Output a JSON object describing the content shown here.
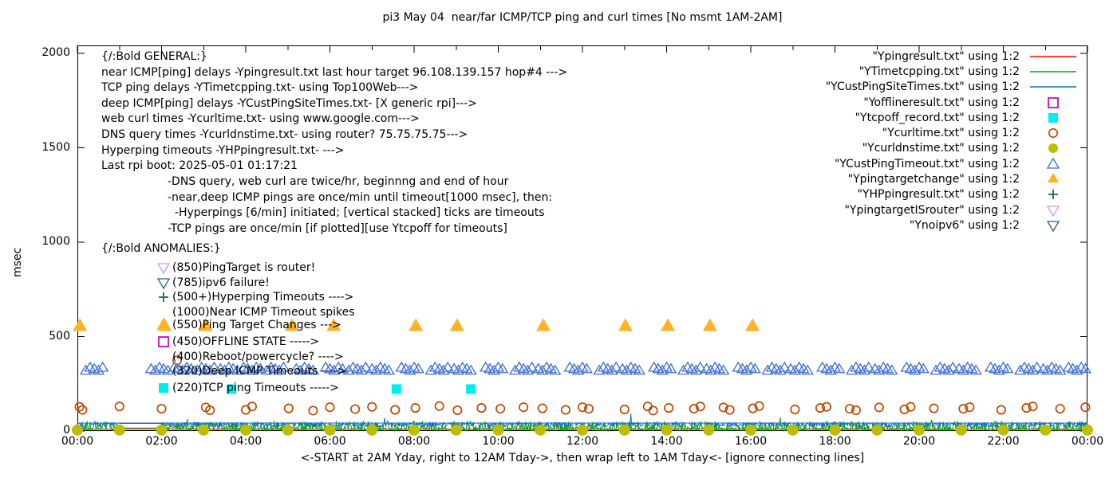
{
  "title": "pi3 May 04  near/far ICMP/TCP ping and curl times [No msmt 1AM-2AM]",
  "axes": {
    "y_label": "msec",
    "y_ticks": [
      0,
      500,
      1000,
      1500,
      2000
    ],
    "x_tick_labels": [
      "00:00",
      "02:00",
      "04:00",
      "06:00",
      "08:00",
      "10:00",
      "12:00",
      "14:00",
      "16:00",
      "18:00",
      "20:00",
      "22:00",
      "00:00"
    ],
    "x_caption": "<-START at 2AM Yday, right to 12AM Tday->, then wrap left to 1AM Tday<- [ignore connecting lines]"
  },
  "legend": {
    "items": [
      {
        "label": "\"Ypingresult.txt\" using 1:2",
        "marker": "line",
        "color": "#ff0000"
      },
      {
        "label": "\"YTimetcpping.txt\" using 1:2",
        "marker": "line",
        "color": "#00a400"
      },
      {
        "label": "\"YCustPingSiteTimes.txt\" using 1:2",
        "marker": "line",
        "color": "#0b69d4"
      },
      {
        "label": "\"Yofflineresult.txt\" using 1:2",
        "marker": "square-open",
        "color": "#bf00bf"
      },
      {
        "label": "\"Ytcpoff_record.txt\" using 1:2",
        "marker": "square-filled",
        "color": "#00eeee"
      },
      {
        "label": "\"Ycurltime.txt\" using 1:2",
        "marker": "circle-open",
        "color": "#c04800"
      },
      {
        "label": "\"Ycurldnstime.txt\" using 1:2",
        "marker": "circle-filled",
        "color": "#bdbd00"
      },
      {
        "label": "\"YCustPingTimeout.txt\" using 1:2",
        "marker": "triangle-up-open",
        "color": "#3c6fd1"
      },
      {
        "label": "\"Ypingtargetchange\" using 1:2",
        "marker": "triangle-up-filled",
        "color": "#ffb226"
      },
      {
        "label": "\"YHPpingresult.txt\" using 1:2",
        "marker": "plus",
        "color": "#1a6b52"
      },
      {
        "label": "\"YpingtargetISrouter\" using 1:2",
        "marker": "triangle-down-open",
        "color": "#cc99ee"
      },
      {
        "label": "\"Ynoipv6\" using 1:2",
        "marker": "triangle-down-open",
        "color": "#33617d"
      }
    ]
  },
  "general": {
    "heading": "{/:Bold GENERAL:}",
    "lines": [
      "near ICMP[ping] delays -Ypingresult.txt last hour target 96.108.139.157 hop#4 --->",
      "TCP ping delays -YTimetcpping.txt- using Top100Web--->",
      "deep ICMP[ping] delays -YCustPingSiteTimes.txt- [X generic rpi]--->",
      "web curl times -Ycurltime.txt- using www.google.com--->",
      "DNS query times -Ycurldnstime.txt- using router? 75.75.75.75--->",
      "Hyperping timeouts -YHPpingresult.txt- --->",
      "Last rpi boot: 2025-05-01 01:17:21"
    ],
    "notes": [
      "-DNS query, web curl are twice/hr, beginnng and end of hour",
      "-near,deep ICMP pings are once/min until timeout[1000 msec], then:",
      "  -Hyperpings [6/min] initiated; [vertical stacked] ticks are timeouts",
      "-TCP pings are once/min [if plotted][use Ytcpoff for timeouts]"
    ]
  },
  "anomalies": {
    "heading": "{/:Bold ANOMALIES:}",
    "rows": [
      {
        "marker": "triangle-down-open",
        "color": "#cc99ee",
        "text": "(850)PingTarget is router!"
      },
      {
        "marker": "triangle-down-open",
        "color": "#33617d",
        "text": "(785)ipv6 failure!"
      },
      {
        "marker": "plus",
        "color": "#1a6b52",
        "text": "(500+)Hyperping Timeouts ---->"
      },
      {
        "marker": "none",
        "color": "",
        "text": "(1000)Near ICMP Timeout spikes"
      },
      {
        "marker": "triangle-up-filled",
        "color": "#ffb226",
        "text": "(550)Ping Target Changes --->"
      },
      {
        "marker": "square-open",
        "color": "#bf00bf",
        "text": "(450)OFFLINE STATE ----->"
      },
      {
        "marker": "none",
        "color": "",
        "text": "(400)Reboot/powercycle? ---->"
      },
      {
        "marker": "none",
        "color": "",
        "text": "(320)Deep ICMP Timeouts ---->"
      },
      {
        "marker": "square-filled",
        "color": "#00eeee",
        "text": "(220)TCP ping Timeouts ----->"
      }
    ]
  },
  "chart_data": {
    "type": "scatter",
    "x_unit": "hours since 2AM yesterday (wrapped)",
    "xlim": [
      0,
      24
    ],
    "ylim": [
      0,
      2042
    ],
    "y_ticks": [
      0,
      500,
      1000,
      1500,
      2000
    ],
    "x_tick_hours": [
      0,
      2,
      4,
      6,
      8,
      10,
      12,
      14,
      16,
      18,
      20,
      22,
      24
    ],
    "grid": false,
    "legend_position": "top-right",
    "no_measurement_gap_hours": [
      1,
      2
    ],
    "series": [
      {
        "name": "Ypingresult.txt",
        "style": "line-noise",
        "color": "#ff0000",
        "base": 8,
        "amp": 5,
        "gap_value": 10,
        "spikes": []
      },
      {
        "name": "YTimetcpping.txt",
        "style": "line-noise",
        "color": "#00a400",
        "base": 1,
        "amp": 52,
        "gap_value": 16,
        "spikes": [
          [
            2.62,
            64
          ],
          [
            16.7,
            72
          ],
          [
            20.3,
            60
          ]
        ]
      },
      {
        "name": "YCustPingSiteTimes.txt",
        "style": "line-noise",
        "color": "#0b69d4",
        "base": 22,
        "amp": 20,
        "cap": 42,
        "gap_value": 40,
        "spikes": [
          [
            7.3,
            70
          ],
          [
            13.15,
            92
          ]
        ]
      },
      {
        "name": "Yofflineresult.txt",
        "style": "points",
        "marker": "square-open",
        "color": "#bf00bf",
        "size": 12,
        "points": []
      },
      {
        "name": "Ytcpoff_record.txt",
        "style": "points",
        "marker": "square-filled",
        "color": "#00eeee",
        "size": 12,
        "points": [
          [
            3.66,
            222
          ],
          [
            7.58,
            222
          ],
          [
            9.35,
            222
          ]
        ]
      },
      {
        "name": "Ycurltime.txt",
        "style": "points",
        "marker": "circle-open",
        "color": "#c04800",
        "size": 12,
        "points": [
          [
            0.05,
            128
          ],
          [
            0.12,
            112
          ],
          [
            1.0,
            130
          ],
          [
            2.0,
            118
          ],
          [
            2.37,
            375
          ],
          [
            3.05,
            125
          ],
          [
            3.15,
            110
          ],
          [
            4.0,
            112
          ],
          [
            4.15,
            130
          ],
          [
            5.02,
            120
          ],
          [
            5.6,
            108
          ],
          [
            6.0,
            126
          ],
          [
            6.6,
            116
          ],
          [
            7.0,
            128
          ],
          [
            7.55,
            112
          ],
          [
            8.03,
            122
          ],
          [
            8.6,
            132
          ],
          [
            9.03,
            110
          ],
          [
            9.6,
            122
          ],
          [
            10.05,
            118
          ],
          [
            10.6,
            126
          ],
          [
            11.05,
            120
          ],
          [
            11.6,
            112
          ],
          [
            12.0,
            126
          ],
          [
            12.15,
            118
          ],
          [
            13.0,
            114
          ],
          [
            13.55,
            130
          ],
          [
            13.68,
            108
          ],
          [
            14.05,
            122
          ],
          [
            14.65,
            118
          ],
          [
            14.8,
            130
          ],
          [
            15.35,
            125
          ],
          [
            15.5,
            112
          ],
          [
            16.05,
            120
          ],
          [
            16.2,
            132
          ],
          [
            17.05,
            114
          ],
          [
            17.65,
            122
          ],
          [
            17.8,
            128
          ],
          [
            18.35,
            118
          ],
          [
            18.5,
            110
          ],
          [
            19.05,
            125
          ],
          [
            19.65,
            114
          ],
          [
            19.8,
            128
          ],
          [
            20.35,
            120
          ],
          [
            21.05,
            118
          ],
          [
            21.2,
            126
          ],
          [
            21.95,
            112
          ],
          [
            22.55,
            122
          ],
          [
            22.7,
            130
          ],
          [
            23.35,
            118
          ],
          [
            23.95,
            126
          ]
        ]
      },
      {
        "name": "Ycurldnstime.txt",
        "style": "points",
        "marker": "circle-filled",
        "color": "#bdbd00",
        "size": 14,
        "points": [
          [
            0,
            5
          ],
          [
            1,
            5
          ],
          [
            2,
            5
          ],
          [
            3,
            5
          ],
          [
            4,
            5
          ],
          [
            5,
            5
          ],
          [
            6,
            5
          ],
          [
            7,
            5
          ],
          [
            8,
            5
          ],
          [
            9,
            5
          ],
          [
            10,
            5
          ],
          [
            11,
            5
          ],
          [
            12,
            5
          ],
          [
            13,
            5
          ],
          [
            14,
            5
          ],
          [
            15,
            5
          ],
          [
            16,
            5
          ],
          [
            17,
            5
          ],
          [
            18,
            5
          ],
          [
            19,
            5
          ],
          [
            20,
            5
          ],
          [
            21,
            5
          ],
          [
            22,
            5
          ],
          [
            23,
            5
          ],
          [
            24,
            5
          ]
        ]
      },
      {
        "name": "YCustPingTimeout.txt",
        "style": "triangle-clusters",
        "marker": "triangle-up-open",
        "color": "#3c6fd1",
        "value": 328,
        "per_cluster": 5,
        "spacing": 0.1,
        "size": 11,
        "cluster_centers": [
          0.4,
          1.95,
          2.5,
          3.05,
          3.6,
          4.15,
          4.7,
          5.4,
          6.1,
          6.65,
          7.2,
          7.9,
          8.6,
          9.15,
          9.9,
          10.6,
          11.15,
          11.9,
          12.6,
          13.15,
          13.9,
          14.6,
          15.15,
          15.9,
          16.6,
          17.15,
          17.9,
          18.6,
          19.15,
          19.9,
          20.6,
          21.15,
          21.9,
          22.6,
          23.15,
          23.75
        ]
      },
      {
        "name": "Ypingtargetchange",
        "style": "points",
        "marker": "triangle-up-filled",
        "color": "#ffb226",
        "size": 16,
        "points": [
          [
            0.06,
            555
          ],
          [
            2.07,
            555
          ],
          [
            3.05,
            555
          ],
          [
            5.1,
            555
          ],
          [
            6.09,
            555
          ],
          [
            8.04,
            555
          ],
          [
            9.02,
            555
          ],
          [
            11.07,
            555
          ],
          [
            13.02,
            555
          ],
          [
            14.03,
            555
          ],
          [
            15.03,
            555
          ],
          [
            16.04,
            555
          ]
        ]
      },
      {
        "name": "YHPpingresult.txt",
        "style": "points",
        "marker": "plus",
        "color": "#1a6b52",
        "size": 12,
        "points": []
      },
      {
        "name": "YpingtargetISrouter",
        "style": "points",
        "marker": "triangle-down-open",
        "color": "#cc99ee",
        "size": 12,
        "points": []
      },
      {
        "name": "Ynoipv6",
        "style": "points",
        "marker": "triangle-down-open",
        "color": "#33617d",
        "size": 12,
        "points": []
      }
    ]
  }
}
